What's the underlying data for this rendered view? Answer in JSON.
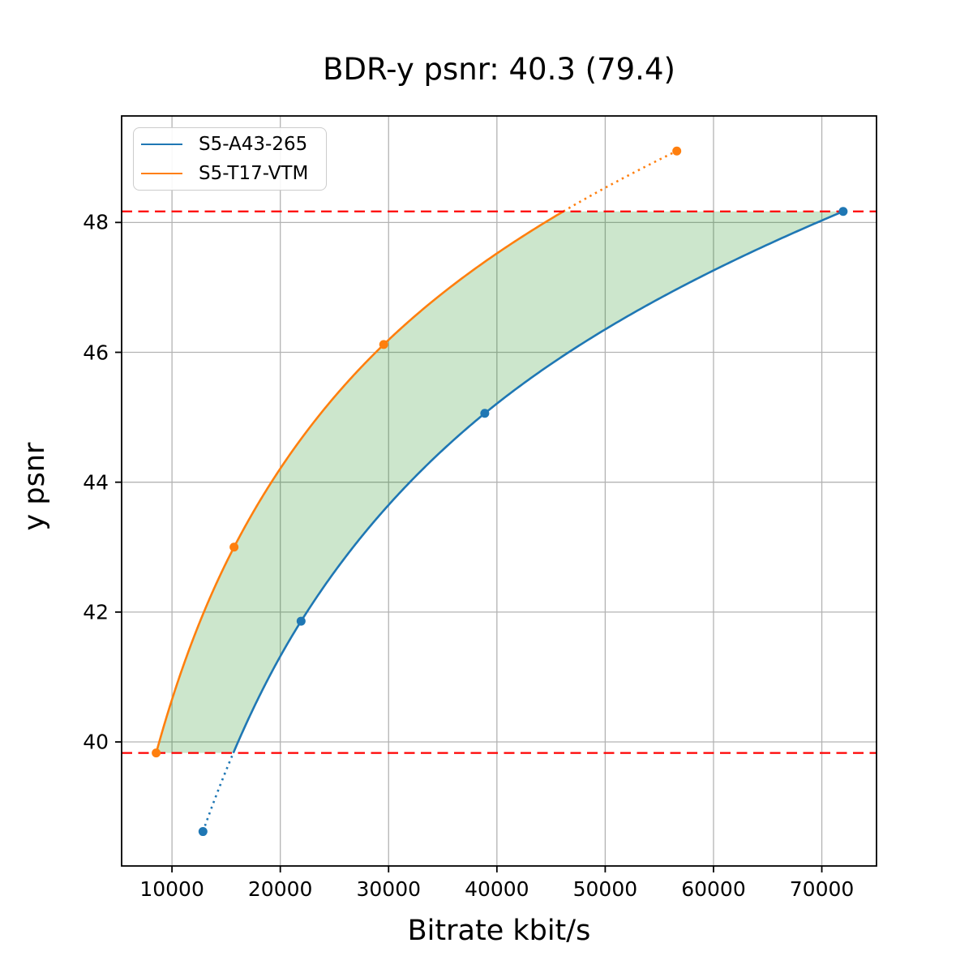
{
  "figure": {
    "title": "BDR-y psnr: 40.3 (79.4)",
    "xlabel": "Bitrate kbit/s",
    "ylabel": "y psnr"
  },
  "chart_data": {
    "type": "line",
    "title": "BDR-y psnr: 40.3 (79.4)",
    "xlabel": "Bitrate kbit/s",
    "ylabel": "y psnr",
    "xlim": [
      5350,
      75050
    ],
    "ylim": [
      38.09,
      49.64
    ],
    "x_ticks": [
      10000,
      20000,
      30000,
      40000,
      50000,
      60000,
      70000
    ],
    "y_ticks": [
      40,
      42,
      44,
      46,
      48
    ],
    "grid": true,
    "grid_color": "#b3b3b3",
    "legend_position": "upper left",
    "interpolation": "pchip-log-x",
    "series": [
      {
        "name": "S5-A43-265",
        "color": "#1f77b4",
        "marker": "circle",
        "points": [
          [
            12860,
            38.62
          ],
          [
            21920,
            41.86
          ],
          [
            38880,
            45.06
          ],
          [
            71970,
            48.17
          ]
        ]
      },
      {
        "name": "S5-T17-VTM",
        "color": "#ff7f0e",
        "marker": "circle",
        "points": [
          [
            8540,
            39.83
          ],
          [
            15730,
            43.0
          ],
          [
            29550,
            46.12
          ],
          [
            56610,
            49.1
          ]
        ]
      }
    ],
    "hlines": [
      {
        "y": 48.17,
        "color": "#ff0000",
        "style": "dashed"
      },
      {
        "y": 39.83,
        "color": "#ff0000",
        "style": "dashed"
      }
    ],
    "solid_range": [
      39.83,
      48.17
    ],
    "shaded_region": {
      "between": [
        "S5-T17-VTM",
        "S5-A43-265"
      ],
      "y_range": [
        39.83,
        48.17
      ],
      "color": "rgba(0, 128, 0, 0.2)"
    }
  }
}
